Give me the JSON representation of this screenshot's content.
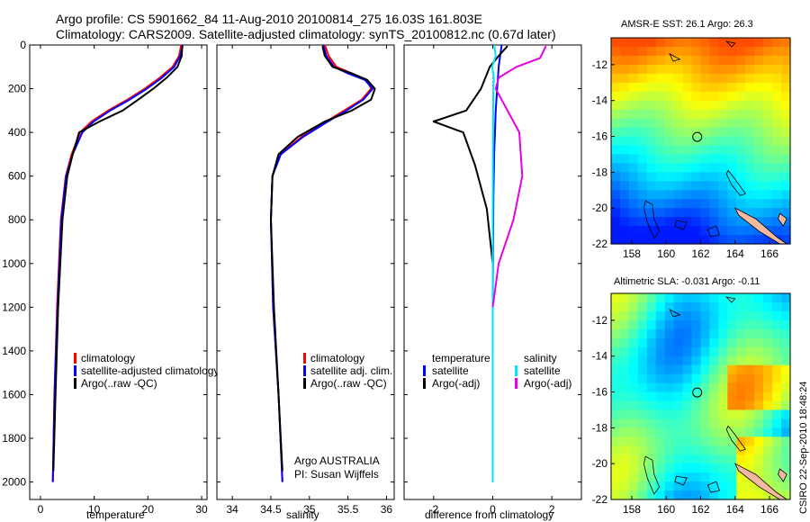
{
  "header": {
    "line1": "Argo profile: CS 5901662_84 11-Aug-2010 20100814_275 16.03S 161.803E",
    "line2": "Climatology: CARS2009. Satellite-adjusted climatology: synTS_20100812.nc (0.67d later)"
  },
  "footer": {
    "credit": "Argo AUSTRALIA",
    "pi": "PI: Susan Wijffels",
    "stamp": "CSIRO 22-Sep-2010 18:48:24"
  },
  "colors": {
    "climatology": "#ff0000",
    "satellite": "#0000ff",
    "argo": "#000000",
    "satellite_salinity": "#00e5ff",
    "argo_salinity_diff": "#e600e6"
  },
  "chart_data": [
    {
      "id": "temperature",
      "type": "line",
      "xlabel": "temperature",
      "ylabel": "",
      "xlim": [
        -2,
        31
      ],
      "ylim": [
        2080,
        0
      ],
      "xticks": [
        0,
        10,
        20,
        30
      ],
      "yticks": [
        0,
        200,
        400,
        600,
        800,
        1000,
        1200,
        1400,
        1600,
        1800,
        2000
      ],
      "legend": [
        "climatology",
        "satellite-adjusted climatology",
        "Argo(..raw -QC)"
      ],
      "series": [
        {
          "name": "climatology",
          "color": "#ff0000",
          "x": [
            26.2,
            25.8,
            24.6,
            22.2,
            19.4,
            16.2,
            12.6,
            9.5,
            7.4,
            5.8,
            4.7,
            3.8,
            3.1,
            2.6,
            2.3
          ],
          "y": [
            0,
            50,
            100,
            150,
            200,
            250,
            300,
            350,
            400,
            500,
            600,
            800,
            1200,
            1600,
            2000
          ]
        },
        {
          "name": "satellite-adjusted climatology",
          "color": "#0000ff",
          "x": [
            26.5,
            26.0,
            24.9,
            22.6,
            19.8,
            16.6,
            13.0,
            9.9,
            7.8,
            6.0,
            4.8,
            3.9,
            3.2,
            2.6,
            2.3
          ],
          "y": [
            0,
            50,
            100,
            150,
            200,
            250,
            300,
            350,
            400,
            500,
            600,
            800,
            1200,
            1600,
            2000
          ]
        },
        {
          "name": "Argo(..raw -QC)",
          "color": "#000000",
          "x": [
            26.4,
            26.3,
            25.5,
            23.5,
            21.0,
            18.2,
            15.3,
            11.0,
            7.2,
            6.0,
            5.0,
            4.1,
            3.3,
            2.8,
            2.4
          ],
          "y": [
            5,
            50,
            100,
            150,
            200,
            250,
            300,
            350,
            400,
            500,
            600,
            800,
            1200,
            1600,
            1950
          ]
        }
      ]
    },
    {
      "id": "salinity",
      "type": "line",
      "xlabel": "salinity",
      "ylabel": "",
      "xlim": [
        33.8,
        36.1
      ],
      "ylim": [
        2080,
        0
      ],
      "xticks": [
        34,
        34.5,
        35,
        35.5,
        36
      ],
      "yticks": [
        0,
        200,
        400,
        600,
        800,
        1000,
        1200,
        1400,
        1600,
        1800,
        2000
      ],
      "legend": [
        "climatology",
        "satellite adj. clim.",
        "Argo(..raw -QC)"
      ],
      "series": [
        {
          "name": "climatology",
          "color": "#ff0000",
          "x": [
            35.2,
            35.25,
            35.35,
            35.55,
            35.75,
            35.8,
            35.68,
            35.45,
            35.22,
            34.9,
            34.62,
            34.52,
            34.5,
            34.53,
            34.6,
            34.65
          ],
          "y": [
            0,
            50,
            100,
            130,
            160,
            200,
            250,
            300,
            350,
            420,
            500,
            600,
            800,
            1200,
            1600,
            2000
          ]
        },
        {
          "name": "satellite adj. clim.",
          "color": "#0000ff",
          "x": [
            35.18,
            35.22,
            35.32,
            35.5,
            35.72,
            35.82,
            35.7,
            35.48,
            35.24,
            34.92,
            34.63,
            34.52,
            34.5,
            34.53,
            34.6,
            34.65
          ],
          "y": [
            0,
            50,
            100,
            130,
            160,
            200,
            250,
            300,
            350,
            420,
            500,
            600,
            800,
            1200,
            1600,
            2000
          ]
        },
        {
          "name": "Argo(..raw -QC)",
          "color": "#000000",
          "x": [
            35.17,
            35.2,
            35.3,
            35.55,
            35.75,
            35.85,
            35.8,
            35.55,
            35.2,
            34.85,
            34.6,
            34.52,
            34.5,
            34.54,
            34.6,
            34.65
          ],
          "y": [
            5,
            50,
            100,
            130,
            160,
            200,
            250,
            300,
            350,
            420,
            500,
            600,
            800,
            1200,
            1600,
            1950
          ]
        }
      ]
    },
    {
      "id": "difference",
      "type": "line",
      "xlabel": "difference from climatology",
      "ylabel": "",
      "xlim": [
        -3,
        3
      ],
      "ylim": [
        2080,
        0
      ],
      "xticks": [
        -2,
        0,
        2
      ],
      "yticks": [
        0,
        200,
        400,
        600,
        800,
        1000,
        1200,
        1400,
        1600,
        1800,
        2000
      ],
      "legend": [
        "temperature",
        "satellite",
        "Argo(-adj)",
        "salinity",
        "satellite",
        "Argo(-adj)"
      ],
      "series": [
        {
          "name": "satellite",
          "group": "temperature",
          "color": "#0000ff",
          "x": [
            0.3,
            0.25,
            0.2,
            0.15,
            0.1,
            0.05,
            0.02,
            0,
            0
          ],
          "y": [
            0,
            50,
            100,
            200,
            300,
            500,
            700,
            1200,
            2000
          ]
        },
        {
          "name": "Argo(-adj)",
          "group": "temperature",
          "color": "#000000",
          "x": [
            0.5,
            0.2,
            -0.1,
            -0.4,
            -0.9,
            -2.0,
            -1.0,
            -0.6,
            -0.2,
            0,
            0
          ],
          "y": [
            5,
            50,
            100,
            200,
            300,
            350,
            400,
            550,
            750,
            1000,
            1950
          ]
        },
        {
          "name": "satellite",
          "group": "salinity",
          "color": "#00e5ff",
          "x": [
            0.05,
            0.1,
            -0.02,
            0.04,
            0.02,
            0.01,
            0,
            0
          ],
          "y": [
            0,
            50,
            100,
            150,
            200,
            400,
            800,
            2000
          ]
        },
        {
          "name": "Argo(-adj)",
          "group": "salinity",
          "color": "#e600e6",
          "x": [
            1.8,
            1.6,
            0.8,
            0.2,
            0.1,
            0.9,
            1.0,
            0.7,
            0.2,
            0
          ],
          "y": [
            5,
            60,
            100,
            150,
            200,
            400,
            600,
            800,
            1000,
            1200
          ]
        }
      ]
    },
    {
      "id": "sst_map",
      "type": "heatmap",
      "title": "AMSR-E SST: 26.1  Argo: 26.3",
      "xlim": [
        156.8,
        167.2
      ],
      "ylim": [
        -22,
        -10.5
      ],
      "xticks": [
        158,
        160,
        162,
        164,
        166
      ],
      "yticks": [
        -12,
        -14,
        -16,
        -18,
        -20,
        -22
      ],
      "float_position": [
        161.803,
        -16.03
      ]
    },
    {
      "id": "sla_map",
      "type": "heatmap",
      "title": "Altimetric SLA: -0.031  Argo: -0.11",
      "xlim": [
        156.8,
        167.2
      ],
      "ylim": [
        -22,
        -10.5
      ],
      "xticks": [
        158,
        160,
        162,
        164,
        166
      ],
      "yticks": [
        -12,
        -14,
        -16,
        -18,
        -20,
        -22
      ],
      "float_position": [
        161.803,
        -16.03
      ]
    }
  ]
}
